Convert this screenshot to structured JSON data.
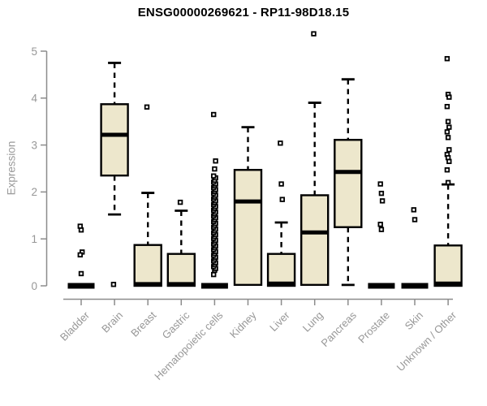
{
  "chart_data": {
    "type": "boxplot",
    "title": "ENSG00000269621 - RP11-98D18.15",
    "xlabel": "",
    "ylabel": "Expression",
    "ylim": [
      0,
      5
    ],
    "yticks": [
      0,
      1,
      2,
      3,
      4,
      5
    ],
    "grid": false,
    "legend": "none",
    "categories": [
      "Bladder",
      "Brain",
      "Breast",
      "Gastric",
      "Hematopoietic cells",
      "Kidney",
      "Liver",
      "Lung",
      "Pancreas",
      "Prostate",
      "Skin",
      "Unknown / Other"
    ],
    "series": [
      {
        "name": "Bladder",
        "whisker_low": 0,
        "q1": 0,
        "median": 0,
        "q3": 0,
        "whisker_high": 0,
        "outliers": [
          1.27,
          1.19,
          0.72,
          0.66,
          0.26
        ]
      },
      {
        "name": "Brain",
        "whisker_low": 1.52,
        "q1": 2.35,
        "median": 3.2,
        "q3": 3.87,
        "whisker_high": 4.75,
        "outliers": [
          0.03
        ]
      },
      {
        "name": "Breast",
        "whisker_low": 0,
        "q1": 0,
        "median": 0.02,
        "q3": 0.87,
        "whisker_high": 1.98,
        "outliers": [
          3.81
        ]
      },
      {
        "name": "Gastric",
        "whisker_low": 0,
        "q1": 0,
        "median": 0.02,
        "q3": 0.68,
        "whisker_high": 1.6,
        "outliers": [
          1.78
        ]
      },
      {
        "name": "Hematopoietic cells",
        "whisker_low": 0,
        "q1": 0,
        "median": 0,
        "q3": 0,
        "whisker_high": 0,
        "outliers": [
          0.24,
          0.33,
          0.37,
          0.41,
          0.45,
          0.49,
          0.53,
          0.57,
          0.61,
          0.65,
          0.69,
          0.73,
          0.77,
          0.81,
          0.85,
          0.89,
          0.93,
          0.97,
          1.01,
          1.05,
          1.09,
          1.13,
          1.17,
          1.21,
          1.25,
          1.29,
          1.33,
          1.37,
          1.41,
          1.45,
          1.49,
          1.53,
          1.57,
          1.61,
          1.65,
          1.69,
          1.73,
          1.77,
          1.81,
          1.85,
          1.89,
          1.93,
          1.97,
          2.01,
          2.05,
          2.09,
          2.13,
          2.17,
          2.21,
          2.25,
          2.3,
          2.34,
          2.49,
          2.66,
          3.65
        ]
      },
      {
        "name": "Kidney",
        "whisker_low": 0,
        "q1": 0.02,
        "median": 1.78,
        "q3": 2.47,
        "whisker_high": 3.38,
        "outliers": []
      },
      {
        "name": "Liver",
        "whisker_low": 0,
        "q1": 0,
        "median": 0.03,
        "q3": 0.68,
        "whisker_high": 1.35,
        "outliers": [
          3.04,
          2.17,
          1.84
        ]
      },
      {
        "name": "Lung",
        "whisker_low": 0,
        "q1": 0.02,
        "median": 1.12,
        "q3": 1.93,
        "whisker_high": 3.9,
        "outliers": [
          5.37
        ]
      },
      {
        "name": "Pancreas",
        "whisker_low": 0.02,
        "q1": 1.25,
        "median": 2.41,
        "q3": 3.11,
        "whisker_high": 4.4,
        "outliers": []
      },
      {
        "name": "Prostate",
        "whisker_low": 0,
        "q1": 0,
        "median": 0,
        "q3": 0,
        "whisker_high": 0,
        "outliers": [
          2.17,
          1.97,
          1.81,
          1.31,
          1.2
        ]
      },
      {
        "name": "Skin",
        "whisker_low": 0,
        "q1": 0,
        "median": 0,
        "q3": 0,
        "whisker_high": 0,
        "outliers": [
          1.62,
          1.41
        ]
      },
      {
        "name": "Unknown / Other",
        "whisker_low": 0,
        "q1": 0,
        "median": 0.03,
        "q3": 0.86,
        "whisker_high": 2.16,
        "outliers": [
          4.84,
          4.08,
          4.02,
          3.82,
          3.5,
          3.38,
          3.28,
          3.16,
          2.9,
          2.8,
          2.73,
          2.65,
          2.47,
          2.2
        ]
      }
    ],
    "colors": {
      "box_fill": "#ede7cc",
      "box_border": "#000000",
      "median": "#000000",
      "whisker": "#000000",
      "outlier_stroke": "#000000",
      "outlier_fill": "#ffffff",
      "axis": "#8c8c8c",
      "tick_label": "#979797",
      "title": "#000000"
    }
  }
}
